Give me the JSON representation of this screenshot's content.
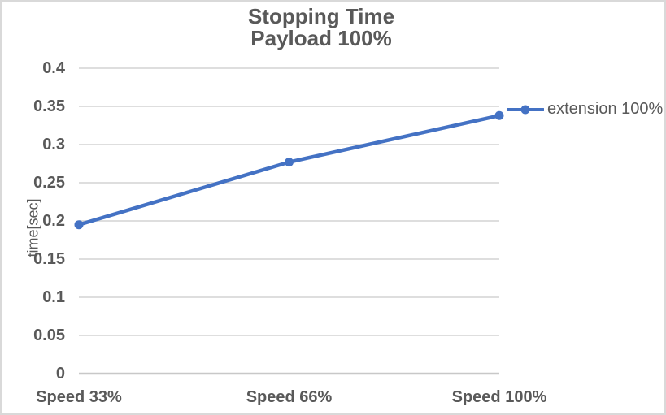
{
  "window": {
    "background": "#ffffff",
    "border_color": "#d9d9d9"
  },
  "chart_data": {
    "type": "line",
    "title_lines": [
      "Stopping Time",
      "Payload 100%"
    ],
    "title": "Stopping Time Payload 100%",
    "xlabel": "",
    "ylabel": "time[sec]",
    "categories": [
      "Speed 33%",
      "Speed 66%",
      "Speed 100%"
    ],
    "series": [
      {
        "name": "extension 100%",
        "values": [
          0.195,
          0.277,
          0.338
        ],
        "color": "#4472c4",
        "marker": "circle"
      }
    ],
    "ylim": [
      0,
      0.4
    ],
    "ytick_step": 0.05,
    "ytick_labels": [
      "0",
      "0.05",
      "0.1",
      "0.15",
      "0.2",
      "0.25",
      "0.3",
      "0.35",
      "0.4"
    ],
    "grid": true,
    "legend_position": "right",
    "colors": {
      "text": "#595959",
      "gridline": "#d9d9d9",
      "axis_line": "#c8c8c8",
      "series_blue": "#4472c4"
    }
  }
}
